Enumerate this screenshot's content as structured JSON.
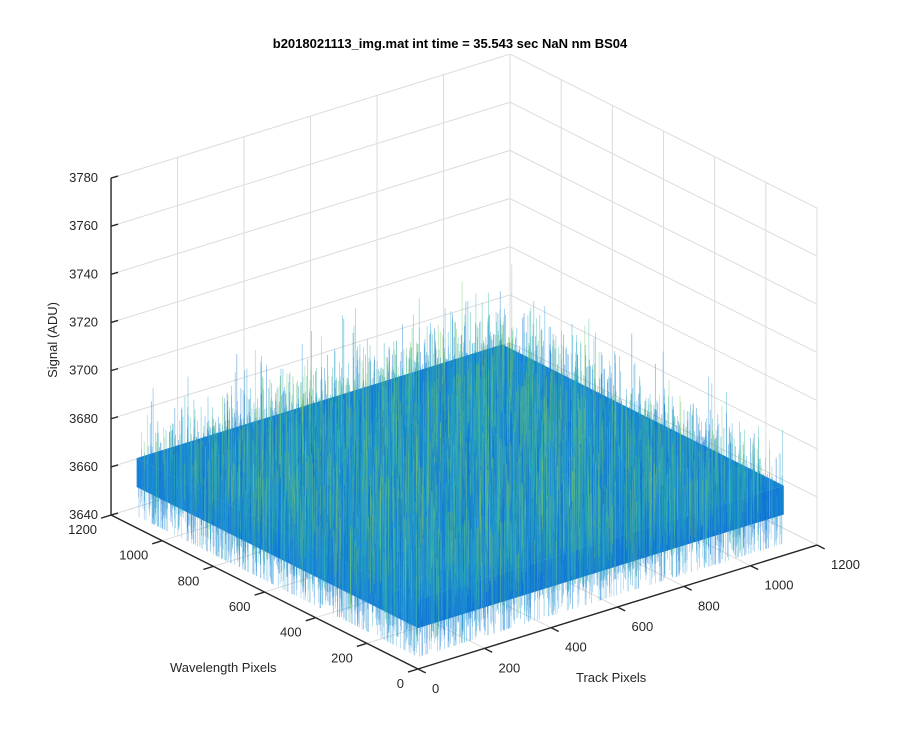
{
  "chart_data": {
    "type": "surface",
    "title": "b2018021113_img.mat int time = 35.543 sec  NaN nm BS04",
    "xlabel": "Track Pixels",
    "ylabel": "Wavelength Pixels",
    "zlabel": "Signal (ADU)",
    "xlim": [
      0,
      1200
    ],
    "ylim": [
      0,
      1200
    ],
    "zlim": [
      3640,
      3780
    ],
    "x_ticks": [
      "0",
      "200",
      "400",
      "600",
      "800",
      "1000",
      "1200"
    ],
    "y_ticks": [
      "0",
      "200",
      "400",
      "600",
      "800",
      "1000",
      "1200"
    ],
    "z_ticks": [
      "3640",
      "3660",
      "3680",
      "3700",
      "3720",
      "3740",
      "3760",
      "3780"
    ],
    "x_extent": [
      0,
      1100
    ],
    "y_extent": [
      0,
      1100
    ],
    "z_mean": 3665,
    "z_noise_band": [
      3645,
      3720
    ],
    "colormap": "parula",
    "surface_colors": [
      "#0d6fd4",
      "#1f8fd8",
      "#21a3c8",
      "#35b7a0",
      "#77c46b"
    ],
    "grid": true
  }
}
